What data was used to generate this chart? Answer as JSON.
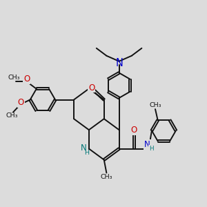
{
  "bg_color": "#dcdcdc",
  "bond_color": "#111111",
  "N_color": "#0000cc",
  "O_color": "#cc0000",
  "NH_color": "#007777",
  "lw": 1.4,
  "dbo": 0.042,
  "fs": 8.5,
  "fss": 6.8,
  "figsize": [
    3.0,
    3.0
  ],
  "dpi": 100,
  "xlim": [
    1.6,
    9.8
  ],
  "ylim": [
    3.0,
    9.2
  ]
}
